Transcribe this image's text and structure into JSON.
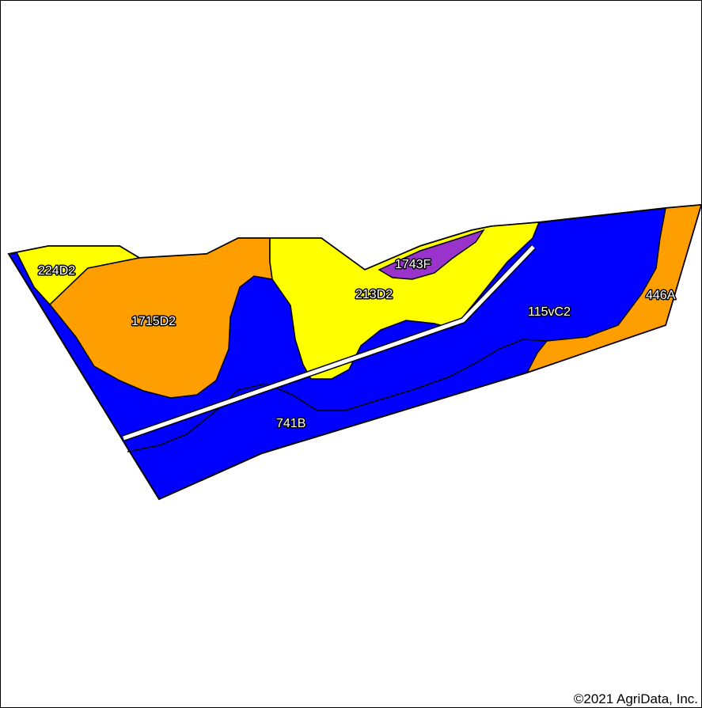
{
  "map": {
    "credit": "©2021 AgriData, Inc.",
    "colors": {
      "blue": "#0000ff",
      "orange": "#ff9e00",
      "yellow": "#ffff00",
      "purple": "#9933cc",
      "boundary": "#000000",
      "road": "#ffffff"
    },
    "soil_units": [
      {
        "id": "224D2",
        "label": "224D2",
        "color": "yellow"
      },
      {
        "id": "1715D2",
        "label": "1715D2",
        "color": "orange"
      },
      {
        "id": "213D2",
        "label": "213D2",
        "color": "yellow"
      },
      {
        "id": "1743F",
        "label": "1743F",
        "color": "purple"
      },
      {
        "id": "115vC2",
        "label": "115vC2",
        "color": "blue"
      },
      {
        "id": "446A",
        "label": "446A",
        "color": "orange"
      },
      {
        "id": "741B",
        "label": "741B",
        "color": "blue"
      }
    ]
  }
}
